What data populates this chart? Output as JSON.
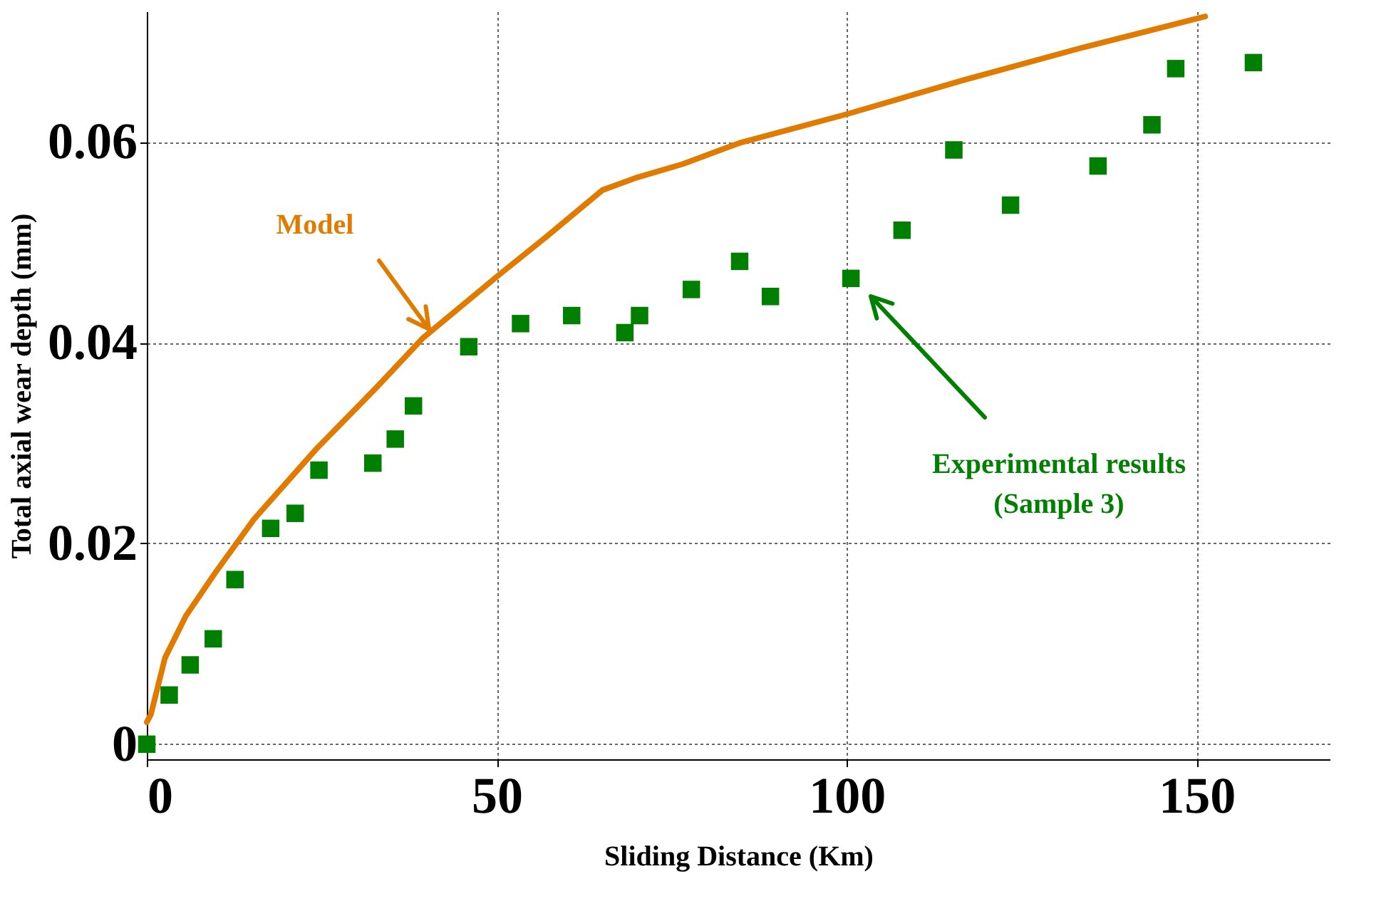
{
  "chart_data": {
    "type": "scatter",
    "xlabel": "Sliding Distance (Km)",
    "ylabel": "Total axial wear depth (mm)",
    "xlim": [
      0,
      169
    ],
    "ylim": [
      -0.0015,
      0.073
    ],
    "xticks": [
      0,
      50,
      100,
      150
    ],
    "yticks": [
      0,
      0.02,
      0.04,
      0.06
    ],
    "grid": true,
    "series": [
      {
        "type": "line",
        "color": "#e07b00",
        "marker": "none",
        "line_style": "solid",
        "x": [
          0,
          0.6,
          2.6,
          5.6,
          9.7,
          15.3,
          24.2,
          32.9,
          39.5,
          50.4,
          57.0,
          65.1,
          69.8,
          76.6,
          84.7,
          100.2,
          116.9,
          133.7,
          151.2
        ],
        "values": [
          0.0022,
          0.003,
          0.0086,
          0.0128,
          0.017,
          0.0224,
          0.0294,
          0.0356,
          0.0405,
          0.0468,
          0.0505,
          0.0552,
          0.0564,
          0.0578,
          0.0599,
          0.0628,
          0.0662,
          0.0694,
          0.0725
        ]
      },
      {
        "color": "#007f00",
        "marker": "square",
        "x": [
          0,
          3.2,
          6.2,
          9.5,
          12.6,
          17.7,
          21.2,
          24.6,
          32.3,
          35.5,
          38.1,
          46.0,
          53.4,
          60.7,
          68.3,
          70.4,
          77.8,
          84.7,
          89.1,
          100.6,
          107.9,
          115.3,
          123.4,
          135.9,
          143.6,
          147.0,
          158.1
        ],
        "values": [
          0,
          0.0049,
          0.0079,
          0.0105,
          0.0164,
          0.0215,
          0.023,
          0.0273,
          0.028,
          0.0304,
          0.0337,
          0.0396,
          0.0419,
          0.0427,
          0.041,
          0.0427,
          0.0453,
          0.0481,
          0.0446,
          0.0464,
          0.0512,
          0.0592,
          0.0537,
          0.0576,
          0.0617,
          0.0673,
          0.0679
        ]
      }
    ],
    "annotations": [
      "Model",
      "Experimental results\n(Sample 3)"
    ]
  }
}
